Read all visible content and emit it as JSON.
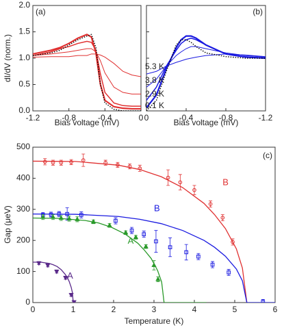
{
  "chart_data": [
    {
      "type": "line",
      "panel_label": "(a)",
      "xlabel": "Bias voltage (mV)",
      "ylabel": "dI/dV (norm.)",
      "xlim": [
        -1.2,
        0
      ],
      "xticks": [
        -1.2,
        -0.8,
        -0.4,
        0
      ],
      "ylim": [
        0,
        2.0
      ],
      "yticks": [
        {
          "value": 0,
          "label": "0.0"
        },
        {
          "value": 0.5,
          "label": "0.5"
        },
        {
          "value": 1.0,
          "label": "1.0"
        },
        {
          "value": 1.5,
          "label": "1.5"
        },
        {
          "value": 2.0,
          "label": "2.0"
        }
      ],
      "series": [
        {
          "color": "#e03030",
          "x": [
            -1.2,
            -1.0,
            -0.9,
            -0.8,
            -0.7,
            -0.6,
            -0.55,
            -0.5,
            -0.45,
            -0.4,
            -0.3,
            -0.2,
            -0.1,
            0
          ],
          "values": [
            1.02,
            1.03,
            1.03,
            1.03,
            1.05,
            1.05,
            1.08,
            1.08,
            1.06,
            1.02,
            0.9,
            0.75,
            0.68,
            0.65
          ]
        },
        {
          "color": "#e03030",
          "x": [
            -1.2,
            -1.0,
            -0.9,
            -0.8,
            -0.7,
            -0.6,
            -0.55,
            -0.5,
            -0.45,
            -0.4,
            -0.3,
            -0.2,
            -0.1,
            0
          ],
          "values": [
            1.05,
            1.08,
            1.1,
            1.12,
            1.15,
            1.18,
            1.18,
            1.12,
            0.95,
            0.72,
            0.45,
            0.35,
            0.32,
            0.32
          ]
        },
        {
          "color": "#e03030",
          "x": [
            -1.2,
            -1.0,
            -0.9,
            -0.8,
            -0.7,
            -0.6,
            -0.55,
            -0.5,
            -0.45,
            -0.4,
            -0.3,
            -0.2,
            -0.1,
            0
          ],
          "values": [
            1.05,
            1.12,
            1.18,
            1.22,
            1.28,
            1.32,
            1.3,
            1.15,
            0.7,
            0.35,
            0.15,
            0.1,
            0.09,
            0.09
          ]
        },
        {
          "color": "#e03030",
          "x": [
            -1.2,
            -1.0,
            -0.9,
            -0.8,
            -0.7,
            -0.6,
            -0.55,
            -0.5,
            -0.45,
            -0.4,
            -0.3,
            -0.2,
            -0.1,
            0
          ],
          "values": [
            1.08,
            1.15,
            1.2,
            1.28,
            1.38,
            1.45,
            1.4,
            1.1,
            0.5,
            0.2,
            0.08,
            0.05,
            0.04,
            0.04
          ]
        },
        {
          "color": "#000000",
          "style": "dotted",
          "x": [
            -1.2,
            -1.0,
            -0.9,
            -0.8,
            -0.7,
            -0.6,
            -0.55,
            -0.5,
            -0.45,
            -0.4,
            -0.3,
            -0.2,
            -0.1,
            0
          ],
          "values": [
            1.05,
            1.1,
            1.15,
            1.25,
            1.35,
            1.42,
            1.45,
            1.2,
            0.5,
            0.15,
            0.03,
            0.0,
            0.0,
            0.0
          ]
        }
      ]
    },
    {
      "type": "line",
      "panel_label": "(b)",
      "xlabel": "Bias voltage (mV)",
      "xlim": [
        0,
        -1.2
      ],
      "xticks": [
        0,
        -0.4,
        -0.8,
        -1.2
      ],
      "ylim": [
        0,
        2.0
      ],
      "yticks": [
        0,
        0.5,
        1.0,
        1.5,
        2.0
      ],
      "annotations": [
        "5.3 K",
        "3.8 K",
        "2.9 K",
        "0.1 K"
      ],
      "series": [
        {
          "color": "#1a1ae0",
          "x": [
            0,
            -0.1,
            -0.2,
            -0.3,
            -0.35,
            -0.4,
            -0.45,
            -0.5,
            -0.6,
            -0.8,
            -1.0,
            -1.2
          ],
          "values": [
            0.7,
            0.75,
            0.85,
            0.92,
            0.95,
            0.98,
            1.0,
            1.02,
            1.05,
            1.08,
            1.06,
            1.03
          ]
        },
        {
          "color": "#1a1ae0",
          "x": [
            0,
            -0.1,
            -0.2,
            -0.3,
            -0.35,
            -0.4,
            -0.45,
            -0.5,
            -0.6,
            -0.8,
            -1.0,
            -1.2
          ],
          "values": [
            0.45,
            0.6,
            0.85,
            1.05,
            1.12,
            1.18,
            1.22,
            1.22,
            1.18,
            1.1,
            1.05,
            1.02
          ]
        },
        {
          "color": "#1a1ae0",
          "x": [
            0,
            -0.1,
            -0.2,
            -0.3,
            -0.35,
            -0.4,
            -0.45,
            -0.5,
            -0.6,
            -0.8,
            -1.0,
            -1.2
          ],
          "values": [
            0.2,
            0.45,
            0.85,
            1.15,
            1.28,
            1.35,
            1.38,
            1.35,
            1.25,
            1.08,
            1.03,
            1.0
          ]
        },
        {
          "color": "#1a1ae0",
          "x": [
            0,
            -0.1,
            -0.2,
            -0.3,
            -0.35,
            -0.4,
            -0.45,
            -0.5,
            -0.6,
            -0.8,
            -1.0,
            -1.2
          ],
          "values": [
            0.06,
            0.3,
            0.8,
            1.2,
            1.35,
            1.42,
            1.42,
            1.38,
            1.25,
            1.08,
            1.02,
            1.0
          ]
        },
        {
          "color": "#000000",
          "style": "dotted",
          "x": [
            0,
            -0.1,
            -0.2,
            -0.3,
            -0.35,
            -0.4,
            -0.45,
            -0.5,
            -0.6,
            -0.8,
            -1.0,
            -1.2
          ],
          "values": [
            0.0,
            0.2,
            0.75,
            1.25,
            1.35,
            1.35,
            1.3,
            1.22,
            1.1,
            1.03,
            1.0,
            1.0
          ]
        }
      ]
    },
    {
      "type": "scatter",
      "panel_label": "(c)",
      "xlabel": "Temperature (K)",
      "ylabel": "Gap (μeV)",
      "xlim": [
        0,
        6
      ],
      "xticks": [
        0,
        1,
        2,
        3,
        4,
        5,
        6
      ],
      "ylim": [
        0,
        500
      ],
      "yticks": [
        0,
        100,
        200,
        300,
        400,
        500
      ],
      "annotations": [
        "B",
        "B",
        "A",
        "A"
      ],
      "series": [
        {
          "color": "#e03030",
          "marker": "circle",
          "x": [
            0.3,
            0.5,
            0.7,
            0.95,
            1.25,
            1.8,
            2.1,
            2.4,
            2.65,
            3.35,
            3.65,
            4.0,
            4.4,
            4.7,
            4.95
          ],
          "values": [
            453,
            450,
            450,
            452,
            458,
            450,
            443,
            438,
            432,
            402,
            387,
            362,
            317,
            273,
            195
          ],
          "errors": [
            10,
            8,
            8,
            8,
            20,
            8,
            8,
            8,
            10,
            25,
            25,
            15,
            10,
            10,
            10
          ]
        },
        {
          "color": "#1a1ae0",
          "marker": "square",
          "x": [
            0.25,
            0.45,
            0.65,
            0.85,
            1.2,
            2.05,
            2.45,
            2.75,
            3.05,
            3.4,
            3.8,
            4.1,
            4.45,
            4.85,
            5.7
          ],
          "values": [
            282,
            283,
            285,
            285,
            282,
            263,
            232,
            220,
            197,
            178,
            162,
            148,
            122,
            97,
            2
          ],
          "errors": [
            8,
            8,
            8,
            20,
            10,
            10,
            10,
            10,
            35,
            30,
            25,
            10,
            10,
            10,
            8
          ]
        },
        {
          "color": "#2a9a2a",
          "marker": "triangle-up",
          "x": [
            0.25,
            0.5,
            0.7,
            0.9,
            1.1,
            1.5,
            1.9,
            2.3,
            2.55,
            2.8,
            3.0,
            3.1
          ],
          "values": [
            275,
            275,
            272,
            270,
            268,
            260,
            248,
            225,
            210,
            180,
            120,
            75
          ],
          "errors": [
            8,
            8,
            8,
            8,
            8,
            6,
            6,
            6,
            6,
            6,
            15,
            8
          ]
        },
        {
          "color": "#5a2a8a",
          "marker": "triangle-down",
          "x": [
            0.15,
            0.37,
            0.59,
            0.81,
            0.95,
            1.02
          ],
          "values": [
            127,
            120,
            100,
            80,
            25,
            2
          ],
          "errors": [
            5,
            5,
            5,
            5,
            5,
            3
          ]
        }
      ],
      "curves": [
        {
          "color": "#e03030",
          "x": [
            0,
            1.06,
            2.12,
            2.65,
            3.18,
            3.71,
            4.24,
            4.5,
            4.77,
            5.04,
            5.19,
            5.3
          ],
          "values": [
            455,
            454,
            442,
            428,
            405,
            370,
            319,
            283,
            238,
            173,
            111,
            0
          ]
        },
        {
          "color": "#1a1ae0",
          "x": [
            0,
            1.06,
            2.12,
            2.65,
            3.18,
            3.71,
            4.24,
            4.5,
            4.77,
            5.04,
            5.19,
            5.3,
            6
          ],
          "values": [
            285,
            284,
            277,
            268,
            254,
            232,
            200,
            178,
            149,
            108,
            70,
            0,
            0
          ]
        },
        {
          "color": "#2a9a2a",
          "x": [
            0,
            0.65,
            1.3,
            1.63,
            1.95,
            2.28,
            2.6,
            2.76,
            2.93,
            3.09,
            3.19,
            3.25,
            4.3
          ],
          "values": [
            272,
            271,
            264,
            256,
            242,
            221,
            191,
            169,
            142,
            103,
            66,
            0,
            0
          ]
        },
        {
          "color": "#5a2a8a",
          "x": [
            0,
            0.2,
            0.4,
            0.5,
            0.6,
            0.7,
            0.8,
            0.85,
            0.9,
            0.95,
            0.98,
            1.0
          ],
          "values": [
            130,
            130,
            126,
            122,
            116,
            106,
            91,
            81,
            68,
            49,
            32,
            0
          ]
        }
      ]
    }
  ]
}
